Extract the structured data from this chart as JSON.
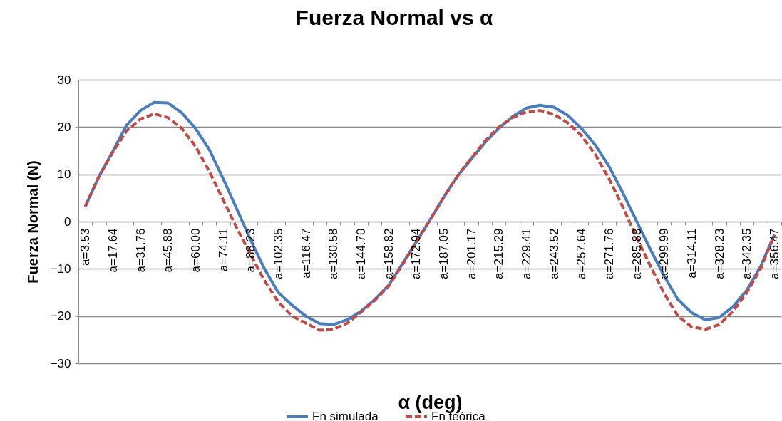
{
  "chart_data": {
    "type": "line",
    "title": "Fuerza Normal vs α",
    "xlabel": "α (deg)",
    "ylabel": "Fuerza Normal  (N)",
    "categories": [
      "a=3.53",
      null,
      "a=17.64",
      null,
      "a=31.76",
      null,
      "a=45.88",
      null,
      "a=60.00",
      null,
      "a=74.11",
      null,
      "a=88.23",
      null,
      "a=102.35",
      null,
      "a=116.47",
      null,
      "a=130.58",
      null,
      "a=144.70",
      null,
      "a=158.82",
      null,
      "a=172.94",
      null,
      "a=187.05",
      null,
      "a=201.17",
      null,
      "a=215.29",
      null,
      "a=229.41",
      null,
      "a=243.52",
      null,
      "a=257.64",
      null,
      "a=271.76",
      null,
      "a=285.88",
      null,
      "a=299.99",
      null,
      "a=314.11",
      null,
      "a=328.23",
      null,
      "a=342.35",
      null,
      "a=356.47"
    ],
    "series": [
      {
        "name": "Fn simulada",
        "color": "#4a7ebb",
        "line_style": "solid",
        "values": [
          3.2,
          9.6,
          14.9,
          20.4,
          23.5,
          25.2,
          25.1,
          23.0,
          19.7,
          15.2,
          9.1,
          2.6,
          -3.9,
          -10.0,
          -15.0,
          -17.7,
          -20.0,
          -21.6,
          -21.8,
          -20.8,
          -19.0,
          -16.5,
          -13.5,
          -9.0,
          -4.4,
          0.3,
          5.1,
          9.6,
          13.2,
          16.7,
          19.7,
          22.2,
          24.0,
          24.6,
          24.2,
          22.5,
          19.7,
          16.2,
          11.7,
          6.1,
          0.1,
          -5.9,
          -11.5,
          -16.5,
          -19.3,
          -20.8,
          -20.3,
          -18.0,
          -14.5,
          -9.5,
          -2.8
        ]
      },
      {
        "name": "Fn teórica",
        "color": "#be4b48",
        "line_style": "dashed",
        "values": [
          3.2,
          9.6,
          14.7,
          19.2,
          21.7,
          22.8,
          22.0,
          19.7,
          15.9,
          10.6,
          4.6,
          -1.4,
          -7.0,
          -12.5,
          -17.0,
          -20.0,
          -21.5,
          -23.0,
          -22.8,
          -21.5,
          -19.2,
          -16.7,
          -13.7,
          -9.2,
          -4.4,
          0.3,
          5.1,
          9.6,
          13.4,
          17.0,
          20.0,
          22.0,
          23.2,
          23.5,
          22.7,
          20.9,
          18.2,
          14.2,
          9.1,
          3.1,
          -3.4,
          -9.4,
          -15.2,
          -20.0,
          -22.3,
          -22.8,
          -21.8,
          -19.0,
          -15.0,
          -10.0,
          -2.8
        ]
      }
    ],
    "ylim": [
      -30,
      30
    ],
    "yticks": [
      -30,
      -20,
      -10,
      0,
      10,
      20,
      30
    ],
    "grid": "y",
    "legend": "bottom"
  }
}
